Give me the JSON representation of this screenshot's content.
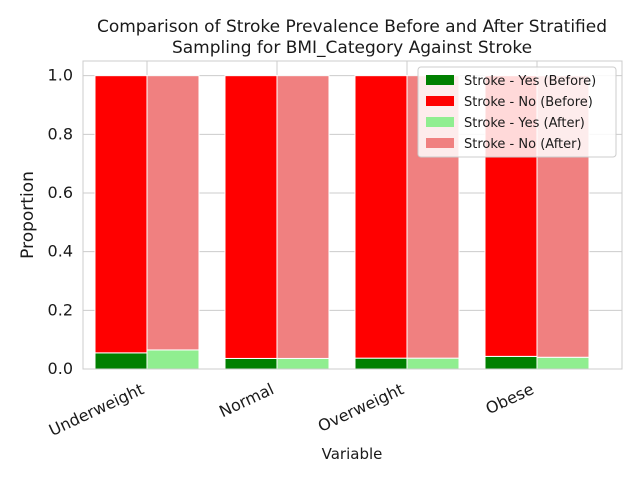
{
  "chart_data": {
    "type": "bar",
    "stacked": true,
    "title_line1": "Comparison of Stroke Prevalence Before and After Stratified",
    "title_line2": "Sampling for BMI_Category Against Stroke",
    "xlabel": "Variable",
    "ylabel": "Proportion",
    "ylim": [
      0,
      1.05
    ],
    "yticks": [
      "0.0",
      "0.2",
      "0.4",
      "0.6",
      "0.8",
      "1.0"
    ],
    "categories": [
      "Underweight",
      "Normal",
      "Overweight",
      "Obese"
    ],
    "grid": true,
    "legend_position": "top-right",
    "series": [
      {
        "name": "Stroke - Yes (Before)",
        "group": "before",
        "color": "#008000",
        "values": [
          0.055,
          0.036,
          0.037,
          0.043
        ]
      },
      {
        "name": "Stroke - No (Before)",
        "group": "before",
        "color": "#ff0000",
        "values": [
          0.945,
          0.964,
          0.963,
          0.957
        ]
      },
      {
        "name": "Stroke - Yes (After)",
        "group": "after",
        "color": "#90ee90",
        "values": [
          0.065,
          0.036,
          0.037,
          0.04
        ]
      },
      {
        "name": "Stroke - No (After)",
        "group": "after",
        "color": "#f08080",
        "values": [
          0.935,
          0.964,
          0.963,
          0.96
        ]
      }
    ]
  }
}
